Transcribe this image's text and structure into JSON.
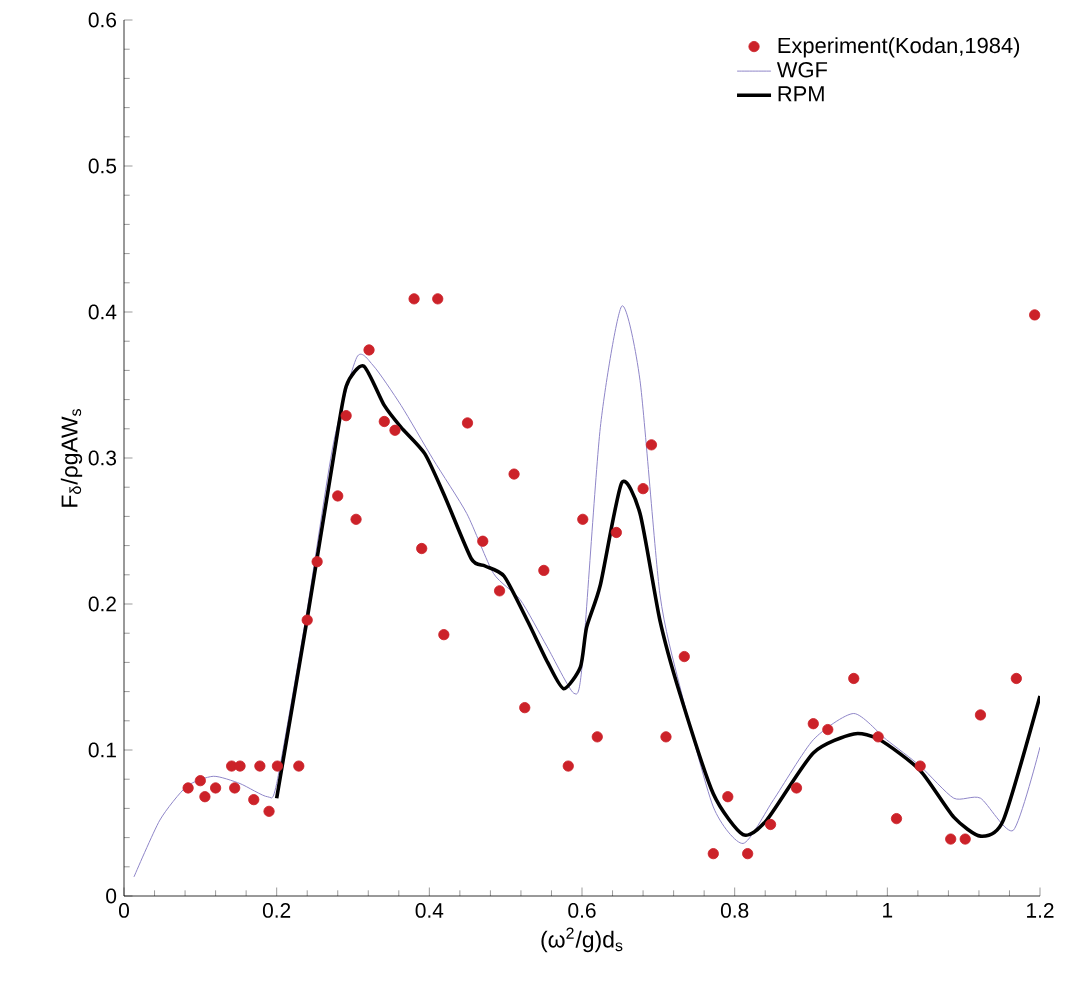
{
  "chart_data": {
    "type": "scatter",
    "xlabel": "(ω$^{2}$/g)d$_{s}$",
    "ylabel": "F$_{δ}$/ρgAW$_{s}$",
    "xlim": [
      0,
      1.2
    ],
    "ylim": [
      0,
      0.6
    ],
    "xticks": [
      0,
      0.2,
      0.4,
      0.6,
      0.8,
      1,
      1.2
    ],
    "yticks": [
      0,
      0.1,
      0.2,
      0.3,
      0.4,
      0.5,
      0.6
    ],
    "grid": false,
    "legend": "top right",
    "series": [
      {
        "name": "Experiment(Kodan,1984)",
        "marker": "circle",
        "color": "#cc2229",
        "x": [
          0.084,
          0.1,
          0.106,
          0.12,
          0.141,
          0.152,
          0.145,
          0.17,
          0.178,
          0.19,
          0.201,
          0.229,
          0.24,
          0.253,
          0.28,
          0.291,
          0.304,
          0.321,
          0.341,
          0.355,
          0.38,
          0.411,
          0.39,
          0.419,
          0.45,
          0.47,
          0.492,
          0.511,
          0.525,
          0.55,
          0.582,
          0.601,
          0.62,
          0.645,
          0.68,
          0.691,
          0.71,
          0.734,
          0.772,
          0.791,
          0.817,
          0.847,
          0.881,
          0.903,
          0.922,
          0.956,
          0.988,
          1.012,
          1.043,
          1.083,
          1.102,
          1.122,
          1.169,
          1.193
        ],
        "values": [
          0.074,
          0.079,
          0.068,
          0.074,
          0.089,
          0.089,
          0.074,
          0.066,
          0.089,
          0.058,
          0.089,
          0.089,
          0.189,
          0.229,
          0.274,
          0.329,
          0.258,
          0.374,
          0.325,
          0.319,
          0.409,
          0.409,
          0.238,
          0.179,
          0.324,
          0.243,
          0.209,
          0.289,
          0.129,
          0.223,
          0.089,
          0.258,
          0.109,
          0.249,
          0.279,
          0.309,
          0.109,
          0.164,
          0.029,
          0.068,
          0.029,
          0.049,
          0.074,
          0.118,
          0.114,
          0.149,
          0.109,
          0.053,
          0.089,
          0.039,
          0.039,
          0.124,
          0.149,
          0.398
        ]
      },
      {
        "name": "WGF",
        "type": "line",
        "marker": "none",
        "color": "#8f86c8",
        "x": [
          0.013,
          0.047,
          0.082,
          0.117,
          0.152,
          0.188,
          0.2,
          0.239,
          0.274,
          0.305,
          0.327,
          0.363,
          0.405,
          0.449,
          0.484,
          0.519,
          0.554,
          0.589,
          0.6,
          0.624,
          0.652,
          0.676,
          0.702,
          0.728,
          0.772,
          0.811,
          0.851,
          0.903,
          0.956,
          0.999,
          1.043,
          1.087,
          1.122,
          1.165,
          1.2
        ],
        "values": [
          0.013,
          0.052,
          0.075,
          0.082,
          0.077,
          0.068,
          0.077,
          0.193,
          0.309,
          0.369,
          0.363,
          0.336,
          0.299,
          0.262,
          0.221,
          0.203,
          0.171,
          0.139,
          0.157,
          0.321,
          0.404,
          0.353,
          0.207,
          0.144,
          0.061,
          0.036,
          0.066,
          0.107,
          0.125,
          0.107,
          0.089,
          0.067,
          0.067,
          0.045,
          0.102
        ]
      },
      {
        "name": "RPM",
        "type": "line",
        "marker": "none",
        "color": "#000000",
        "x": [
          0.2,
          0.24,
          0.274,
          0.291,
          0.314,
          0.341,
          0.363,
          0.394,
          0.42,
          0.455,
          0.473,
          0.498,
          0.529,
          0.555,
          0.576,
          0.598,
          0.606,
          0.624,
          0.652,
          0.676,
          0.702,
          0.728,
          0.772,
          0.811,
          0.842,
          0.903,
          0.956,
          0.99,
          1.043,
          1.087,
          1.122,
          1.152,
          1.2
        ],
        "values": [
          0.067,
          0.19,
          0.299,
          0.349,
          0.363,
          0.336,
          0.321,
          0.303,
          0.274,
          0.231,
          0.226,
          0.219,
          0.188,
          0.16,
          0.142,
          0.157,
          0.184,
          0.213,
          0.283,
          0.262,
          0.189,
          0.139,
          0.07,
          0.042,
          0.052,
          0.098,
          0.111,
          0.107,
          0.086,
          0.054,
          0.041,
          0.052,
          0.137
        ]
      }
    ]
  }
}
